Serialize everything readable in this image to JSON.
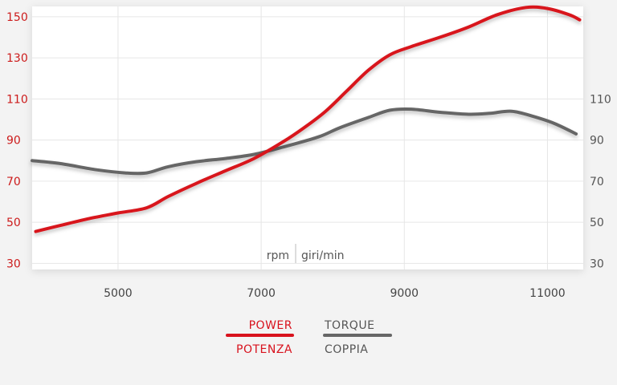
{
  "chart_data": {
    "type": "line",
    "xlim": [
      3800,
      11500
    ],
    "ylim": [
      27,
      155
    ],
    "x_ticks": [
      5000,
      7000,
      9000,
      11000
    ],
    "y_left_ticks": [
      30,
      50,
      70,
      90,
      110,
      130,
      150
    ],
    "y_right_ticks": [
      30,
      50,
      70,
      90,
      110
    ],
    "unit_label_left": "rpm",
    "unit_label_right": "giri/min",
    "grid": true,
    "legend_position": "bottom",
    "series": [
      {
        "name": "POWER",
        "name_alt": "POTENZA",
        "color": "#d8121d",
        "points": [
          [
            3850,
            45.5
          ],
          [
            4200,
            48.5
          ],
          [
            4600,
            51.8
          ],
          [
            5000,
            54.5
          ],
          [
            5400,
            57
          ],
          [
            5700,
            62.5
          ],
          [
            6100,
            69
          ],
          [
            6500,
            75
          ],
          [
            6900,
            81
          ],
          [
            7300,
            89
          ],
          [
            7600,
            96
          ],
          [
            7900,
            104
          ],
          [
            8200,
            114
          ],
          [
            8500,
            124
          ],
          [
            8800,
            131.5
          ],
          [
            9100,
            135.5
          ],
          [
            9500,
            140
          ],
          [
            9900,
            145
          ],
          [
            10300,
            151
          ],
          [
            10700,
            154.5
          ],
          [
            11000,
            154
          ],
          [
            11300,
            151
          ],
          [
            11450,
            148.5
          ]
        ]
      },
      {
        "name": "TORQUE",
        "name_alt": "COPPIA",
        "color": "#666666",
        "points": [
          [
            3800,
            80
          ],
          [
            4200,
            78.5
          ],
          [
            4700,
            75.5
          ],
          [
            5100,
            74
          ],
          [
            5400,
            74
          ],
          [
            5700,
            77
          ],
          [
            6100,
            79.5
          ],
          [
            6500,
            81
          ],
          [
            6900,
            83
          ],
          [
            7300,
            86.5
          ],
          [
            7800,
            91.5
          ],
          [
            8100,
            96
          ],
          [
            8500,
            101
          ],
          [
            8800,
            104.5
          ],
          [
            9100,
            105
          ],
          [
            9500,
            103.5
          ],
          [
            9900,
            102.5
          ],
          [
            10200,
            103
          ],
          [
            10500,
            104
          ],
          [
            10800,
            101.5
          ],
          [
            11100,
            98
          ],
          [
            11400,
            93
          ]
        ]
      }
    ]
  }
}
